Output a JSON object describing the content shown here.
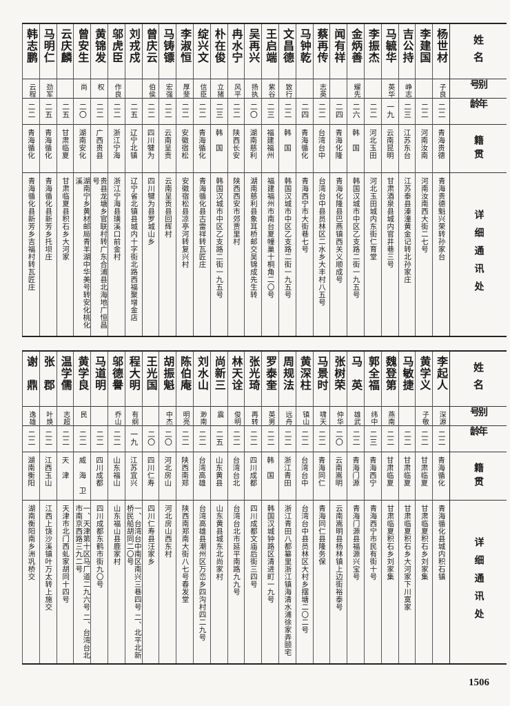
{
  "tables": [
    {
      "header": [
        "姓名",
        "别号",
        "年龄",
        "籍贯",
        "详细通讯处"
      ],
      "rows": [
        [
          "杨世材",
          "子良",
          "二二",
          "青海贵德",
          "青海贵德魁兴荣转孙家台"
        ],
        [
          "李建国",
          null,
          "二二",
          "河南汝南",
          "河南汝南西大街二七号"
        ],
        [
          "吉公持",
          "峥志",
          "二三",
          "江苏东台",
          "江苏泰县溱潼黄金记转北孙家庄"
        ],
        [
          "马毓华",
          "英华",
          "一九",
          "云南昆明",
          "甘肃酒泉县城内官井巷三号"
        ],
        [
          "李振杰",
          null,
          "二二",
          "河北玉田",
          "河北玉田城内东街仁育堂"
        ],
        [
          "金炳善",
          "耀先",
          "二六",
          "韩　国",
          "韩国汉城市中区乙支路二街一九五号"
        ],
        [
          "闻有祥",
          null,
          "二四",
          "青海化隆",
          "青海化隆县巴燕镇西关义顺成号"
        ],
        [
          "蔡再传",
          "志英",
          "二二",
          "台湾台中",
          "台湾台中县员林区二水乡大丰村八五号"
        ],
        [
          "马钟乾",
          null,
          "二四",
          "青海循化",
          "青海西宁市大街巷七号"
        ],
        [
          "文昌德",
          "致行",
          "二二",
          "韩　国",
          "韩国汉城市中区乙支路二街一九五号"
        ],
        [
          "王启端",
          "紫谷",
          "二三",
          "福建福州",
          "福建福州市南台夏幢巢十桐角二〇号"
        ],
        [
          "吴再兴",
          "扬执",
          "二〇",
          "湖南慈利",
          "湖南慈利县象耳桥邮交吴锦成先生转"
        ],
        [
          "冉水宁",
          "风平",
          "二二",
          "陕西长安",
          "陕西西安市郊贾里村"
        ],
        [
          "朴在俊",
          "立猪",
          "二三",
          "韩　国",
          "韩国汉城市中区乙支路二街一九五号"
        ],
        [
          "绽兴文",
          "信臣",
          "二二",
          "青海循化",
          "青海循化县古雷祥转瓦匠庄"
        ],
        [
          "李淑恒",
          "厚斐",
          "二二",
          "安徽宿松",
          "安徽宿松县凉亭河转复兴村"
        ],
        [
          "马铸镖",
          "宏强",
          "二二",
          "云南呈贡",
          "云南呈贡县回辉村"
        ],
        [
          "曾庆云",
          "伯侯",
          "二二",
          "四川犍为",
          "四川犍为县罗城山乡"
        ],
        [
          "刘戎戍",
          null,
          "二五",
          "辽宁北镇",
          "辽宁省北镇县城内十字街北路西福聚增金店"
        ],
        [
          "邬虎臣",
          "作良",
          "二二",
          "浙江宁海",
          "浙江宁海县璜溪口前金村"
        ],
        [
          "黄锦发",
          "权",
          "二二",
          "广西贵县",
          "贵县龙塘乡官联村转广东合浦县北海地广恒昌号"
        ],
        [
          "曾安生",
          "尚",
          "二〇",
          "湖南安化",
          "湖南宁乡黄材邮局青羊湖中华美号转安化桃化溪"
        ],
        [
          "云庆麟",
          null,
          "二五",
          "甘肃临夏",
          "甘肃临夏县积石乡大河家"
        ],
        [
          "马明仁",
          "劲军",
          "二五",
          "青海循化",
          "青海循化县新芳乡托坝庄"
        ],
        [
          "韩志鹏",
          "云程",
          "二二",
          "青海循化",
          "青海循化县新芳乡吉福村转瓦匠庄"
        ]
      ]
    },
    {
      "header": [
        "姓名",
        "别号",
        "年龄",
        "籍贯",
        "详细通讯处"
      ],
      "rows": [
        [
          "李起人",
          "深源",
          "二二",
          "青海循化",
          "青海循化县城内积石镇"
        ],
        [
          "黄学义",
          "子敬",
          "二二",
          "甘肃临夏",
          "甘肃临夏积石乡刘家集"
        ],
        [
          "马敏捷",
          null,
          "二二",
          "甘肃临夏",
          "甘肃临夏积石乡大河家下川寞家"
        ],
        [
          "魏登第",
          "燕南",
          "二二",
          "甘肃临夏",
          "甘肃临夏积石乡刘家集"
        ],
        [
          "郭全福",
          "纬中",
          "二三",
          "青海西宁",
          "青海西宁市民有街十号"
        ],
        [
          "马　英",
          "雄武",
          "二二",
          "青海门源",
          "青海门源县福源兴宝号"
        ],
        [
          "张树荣",
          "仲华",
          "二〇",
          "云南嵩明",
          "云南嵩明县杨林镇上边街裕泰号"
        ],
        [
          "马景时",
          "啸天",
          "二二",
          "青海同仁",
          "青海同仁县隆务保"
        ],
        [
          "黄深柱",
          "镇山",
          "二二",
          "台湾台中",
          "台湾台中县员林区大村乡摆塘二〇二号"
        ],
        [
          "周规法",
          "远舟",
          "二二",
          "浙江青田",
          "浙江青田八都纂里浙江镇海清水浦徐家弄颐宅"
        ],
        [
          "罗泰奎",
          "英男",
          "二二",
          "韩　国",
          "韩国汉城钟路区清进町一九号"
        ],
        [
          "张光琦",
          "再转",
          "二二",
          "四川成都",
          "四川成都文庙后街三四号"
        ],
        [
          "林天诠",
          "俊明",
          "二二",
          "台湾台北",
          "台湾台北市延平南路九九号"
        ],
        [
          "尚新三",
          "震",
          "二五",
          "山东黄县",
          "山东黄县城东北尚家村"
        ],
        [
          "刘水山",
          "渺南",
          "二二",
          "台湾高雄",
          "台湾高雄县潮州区万峦乡四沟村四二九号"
        ],
        [
          "陈伯庵",
          "明亮",
          "二二",
          "陕西南郑",
          "陕西南郑南大街八七号春发堂"
        ],
        [
          "胡振魁",
          "中杰",
          "二〇",
          "河北房山",
          "河北房山西东村"
        ],
        [
          "王光国",
          null,
          "二〇",
          "四川仁寿",
          "四川仁寿县汪家乡"
        ],
        [
          "程大明",
          "有纲",
          "一九",
          "江苏宜兴",
          "一、台湾台中南区南兴三巷四号 二、北平北新桥民船胡同二〇号"
        ],
        [
          "邬德譽",
          "乔山",
          "二二",
          "山东福山",
          "山东福山县鹿家村"
        ],
        [
          "马道明",
          null,
          "二二",
          "四川成都",
          "四川成都东鹤市街九〇号"
        ],
        [
          "黄学良",
          "民",
          "二二",
          "威　海　卫",
          "一、天津第十区马厂道二九六号 二、台湾台北市南京西路三九二号"
        ],
        [
          "温学儒",
          "志超",
          "二二",
          "天　津",
          "天津市北门西虬家胡同十四号"
        ],
        [
          "张　郡",
          "叶焕",
          "二二",
          "江西玉山",
          "江西上饶沙溪镇叶万太转上施交"
        ],
        [
          "谢　鼎",
          "逸雄",
          "二二",
          "湖南衡阳",
          "湖南衡阳南乡洲巩桥交"
        ]
      ]
    }
  ],
  "page_number": "1506"
}
